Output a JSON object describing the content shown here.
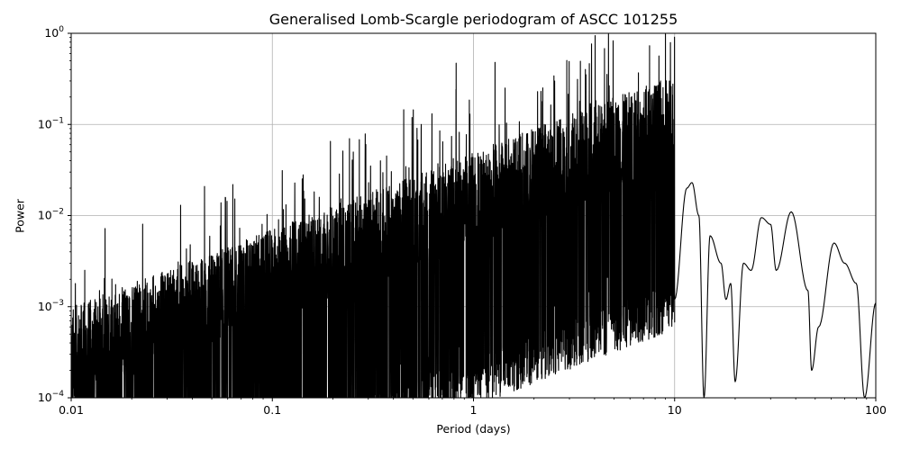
{
  "chart_data": {
    "type": "line",
    "title": "Generalised Lomb-Scargle periodogram of ASCC 101255",
    "xlabel": "Period (days)",
    "ylabel": "Power",
    "xscale": "log",
    "yscale": "log",
    "xlim": [
      0.01,
      100
    ],
    "ylim": [
      0.0001,
      1
    ],
    "grid": true,
    "x_ticks": [
      {
        "value": 0.01,
        "label": "0.01"
      },
      {
        "value": 0.1,
        "label": "0.1"
      },
      {
        "value": 1,
        "label": "1"
      },
      {
        "value": 10,
        "label": "10"
      },
      {
        "value": 100,
        "label": "100"
      }
    ],
    "y_ticks": [
      {
        "value": 0.0001,
        "base": "10",
        "exp": "−4"
      },
      {
        "value": 0.001,
        "base": "10",
        "exp": "−3"
      },
      {
        "value": 0.01,
        "base": "10",
        "exp": "−2"
      },
      {
        "value": 0.1,
        "base": "10",
        "exp": "−1"
      },
      {
        "value": 1,
        "base": "10",
        "exp": "0"
      }
    ],
    "line_color": "#000000",
    "grid_color": "#b0b0b0",
    "peaks": [
      {
        "period": 0.32,
        "power": 0.013
      },
      {
        "period": 0.37,
        "power": 0.045
      },
      {
        "period": 0.45,
        "power": 0.145
      },
      {
        "period": 0.55,
        "power": 0.1
      },
      {
        "period": 0.68,
        "power": 0.085
      },
      {
        "period": 0.82,
        "power": 0.47
      },
      {
        "period": 0.89,
        "power": 0.03
      },
      {
        "period": 1.1,
        "power": 0.04
      },
      {
        "period": 1.28,
        "power": 0.48
      },
      {
        "period": 1.45,
        "power": 0.06
      },
      {
        "period": 1.75,
        "power": 0.08
      },
      {
        "period": 2.25,
        "power": 0.1
      },
      {
        "period": 2.9,
        "power": 0.038
      },
      {
        "period": 3.7,
        "power": 0.028
      },
      {
        "period": 4.48,
        "power": 0.68
      },
      {
        "period": 5.3,
        "power": 0.032
      },
      {
        "period": 6.4,
        "power": 0.02
      },
      {
        "period": 7.5,
        "power": 0.016
      },
      {
        "period": 9.0,
        "power": 0.025
      }
    ],
    "envelope": [
      {
        "period": 10,
        "power": 0.0012
      },
      {
        "period": 11.5,
        "power": 0.02
      },
      {
        "period": 12.2,
        "power": 0.023
      },
      {
        "period": 13.2,
        "power": 0.01
      },
      {
        "period": 14,
        "power": 0.0001
      },
      {
        "period": 15,
        "power": 0.006
      },
      {
        "period": 17,
        "power": 0.003
      },
      {
        "period": 18,
        "power": 0.0012
      },
      {
        "period": 19,
        "power": 0.0018
      },
      {
        "period": 20,
        "power": 0.00015
      },
      {
        "period": 22,
        "power": 0.003
      },
      {
        "period": 24,
        "power": 0.0025
      },
      {
        "period": 27,
        "power": 0.0095
      },
      {
        "period": 30,
        "power": 0.008
      },
      {
        "period": 32,
        "power": 0.0025
      },
      {
        "period": 38,
        "power": 0.011
      },
      {
        "period": 46,
        "power": 0.0015
      },
      {
        "period": 48,
        "power": 0.0002
      },
      {
        "period": 52,
        "power": 0.0006
      },
      {
        "period": 62,
        "power": 0.005
      },
      {
        "period": 70,
        "power": 0.003
      },
      {
        "period": 80,
        "power": 0.0018
      },
      {
        "period": 88,
        "power": 0.0001
      },
      {
        "period": 100,
        "power": 0.0011
      }
    ]
  }
}
